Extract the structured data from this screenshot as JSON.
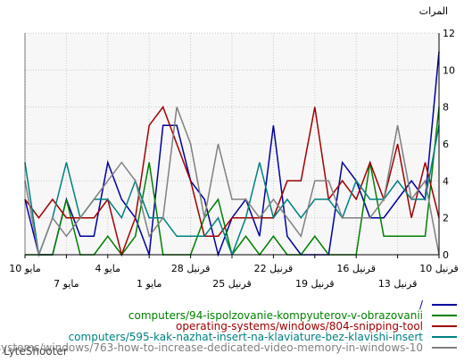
{
  "chart_data": {
    "type": "line",
    "ylabel": "المرات",
    "ylim": [
      0,
      12
    ],
    "yticks": [
      "0",
      "2",
      "4",
      "6",
      "8",
      "10",
      "12"
    ],
    "grid": true,
    "x_tick_labels": [
      {
        "label": "10 قرنيل",
        "index": 0,
        "row": 1
      },
      {
        "label": "13 قرنيل",
        "index": 3,
        "row": 2
      },
      {
        "label": "16 قرنيل",
        "index": 6,
        "row": 1
      },
      {
        "label": "19 قرنيل",
        "index": 9,
        "row": 2
      },
      {
        "label": "22 قرنيل",
        "index": 12,
        "row": 1
      },
      {
        "label": "25 قرنيل",
        "index": 15,
        "row": 2
      },
      {
        "label": "28 قرنيل",
        "index": 18,
        "row": 1
      },
      {
        "label": "1 مايو",
        "index": 21,
        "row": 2
      },
      {
        "label": "4 مايو",
        "index": 24,
        "row": 1
      },
      {
        "label": "7 مايو",
        "index": 27,
        "row": 2
      },
      {
        "label": "10 مايو",
        "index": 30,
        "row": 1
      }
    ],
    "series": [
      {
        "name": "/",
        "color": "#0000a0",
        "values": [
          11,
          3,
          4,
          3,
          2,
          2,
          4,
          5,
          0,
          0,
          0,
          1,
          7,
          1,
          3,
          2,
          0,
          3,
          4,
          7,
          7,
          0,
          2,
          3,
          5,
          1,
          1,
          3,
          0,
          0,
          3,
          3,
          3,
          6
        ]
      },
      {
        "name": "computers/94-ispolzovanie-kompyuterov-v-obrazovanii",
        "color": "#008000",
        "values": [
          8,
          1,
          1,
          1,
          1,
          5,
          0,
          0,
          0,
          1,
          0,
          0,
          1,
          0,
          1,
          0,
          3,
          2,
          0,
          0,
          0,
          5,
          1,
          0,
          1,
          0,
          0,
          3,
          0,
          0,
          0,
          0,
          0,
          0
        ]
      },
      {
        "name": "operating-systems/windows/804-snipping-tool",
        "color": "#a00000",
        "values": [
          2,
          5,
          2,
          6,
          3,
          5,
          3,
          4,
          3,
          8,
          4,
          4,
          2,
          2,
          2,
          2,
          1,
          1,
          4,
          6,
          8,
          7,
          2,
          0,
          3,
          2,
          2,
          2,
          3,
          2,
          3
        ]
      },
      {
        "name": "computers/595-kak-nazhat-insert-na-klaviature-bez-klavishi-insert",
        "color": "#008080",
        "values": [
          7,
          3,
          3,
          4,
          3,
          3,
          4,
          2,
          3,
          3,
          2,
          3,
          2,
          5,
          2,
          0,
          2,
          1,
          1,
          1,
          2,
          2,
          4,
          2,
          3,
          3,
          2,
          5,
          2,
          0,
          5
        ]
      },
      {
        "name": "operating-systems/windows/763-how-to-increase-dedicated-video-memory-in-windows-10",
        "color": "#808080",
        "values": [
          0,
          4,
          3,
          7,
          3,
          2,
          2,
          2,
          4,
          4,
          1,
          2,
          3,
          2,
          3,
          3,
          6,
          2,
          6,
          8,
          2,
          1,
          4,
          5,
          4,
          3,
          2,
          1,
          2,
          0,
          4,
          3
        ]
      }
    ]
  },
  "watermark": "LyteShooter"
}
